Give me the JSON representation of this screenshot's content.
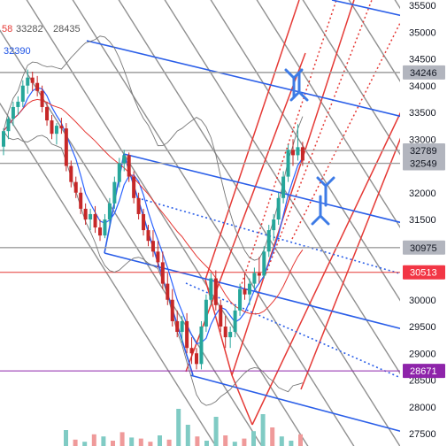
{
  "chart_data": {
    "type": "candlestick",
    "legend_values": [
      {
        "text": "58",
        "color": "#e53935"
      },
      {
        "text": "33282",
        "color": "#555555"
      },
      {
        "text": "28435",
        "color": "#555555"
      },
      {
        "text": "32390",
        "color": "#1e53e5"
      }
    ],
    "ylim": [
      27250,
      35650
    ],
    "y_ticks": [
      27500,
      28000,
      28500,
      29000,
      29500,
      30000,
      30500,
      31000,
      31500,
      32000,
      32500,
      33000,
      33500,
      34000,
      34500,
      35000,
      35500
    ],
    "y_tick_labels": [
      "27500",
      "28000",
      "28500",
      "29000",
      "29500",
      "30000",
      "30500",
      "31000",
      "31500",
      "32000",
      "32500",
      "33000",
      "33500",
      "34000",
      "34500",
      "35000",
      "35500"
    ],
    "price_labels": [
      {
        "value": 34246,
        "text": "34246",
        "style": "gray"
      },
      {
        "value": 32789,
        "text": "32789",
        "style": "gray"
      },
      {
        "value": 32549,
        "text": "32549",
        "style": "gray"
      },
      {
        "value": 30975,
        "text": "30975",
        "style": "gray"
      },
      {
        "value": 30513,
        "text": "30513",
        "style": "red"
      },
      {
        "value": 28671,
        "text": "28671",
        "style": "purple"
      }
    ],
    "colors": {
      "up": "#26a69a",
      "down": "#c62828",
      "red_lines": "#e53935",
      "blue_lines": "#2a5ee8",
      "gray_lines": "#6b6b6b",
      "arrows": "#3d7be6",
      "ma_blue": "#2962ff",
      "ma_red": "#e53935",
      "band": "#777777",
      "tag_gray": "#b2b5be",
      "tag_red": "#f23645",
      "tag_purple": "#8e24aa"
    },
    "candles": [
      [
        32860,
        33200,
        32700,
        33150
      ],
      [
        33150,
        33420,
        33000,
        33380
      ],
      [
        33380,
        33700,
        33250,
        33600
      ],
      [
        33600,
        33800,
        33450,
        33700
      ],
      [
        33700,
        34100,
        33600,
        34000
      ],
      [
        34000,
        34300,
        33850,
        34150
      ],
      [
        34150,
        34260,
        33900,
        34050
      ],
      [
        34050,
        34180,
        33800,
        33900
      ],
      [
        33900,
        34000,
        33500,
        33600
      ],
      [
        33600,
        33700,
        33250,
        33350
      ],
      [
        33350,
        33450,
        33000,
        33100
      ],
      [
        33100,
        33300,
        32900,
        33250
      ],
      [
        33250,
        33400,
        33100,
        33200
      ],
      [
        33200,
        33300,
        32400,
        32500
      ],
      [
        32500,
        32600,
        32100,
        32200
      ],
      [
        32200,
        32300,
        31900,
        32000
      ],
      [
        32000,
        32100,
        31600,
        31700
      ],
      [
        31700,
        31800,
        31400,
        31500
      ],
      [
        31500,
        31700,
        31300,
        31600
      ],
      [
        31600,
        31750,
        31250,
        31350
      ],
      [
        31350,
        31500,
        31100,
        31200
      ],
      [
        31200,
        31600,
        31150,
        31500
      ],
      [
        31500,
        31900,
        31400,
        31800
      ],
      [
        31800,
        32300,
        31700,
        32200
      ],
      [
        32200,
        32650,
        32100,
        32550
      ],
      [
        32550,
        32800,
        32400,
        32700
      ],
      [
        32700,
        32750,
        32200,
        32300
      ],
      [
        32300,
        32400,
        31800,
        31900
      ],
      [
        31900,
        32000,
        31500,
        31600
      ],
      [
        31600,
        31700,
        31200,
        31300
      ],
      [
        31300,
        31400,
        31000,
        31100
      ],
      [
        31100,
        31300,
        30800,
        30900
      ],
      [
        30900,
        31100,
        30600,
        30700
      ],
      [
        30700,
        30900,
        30200,
        30300
      ],
      [
        30300,
        30500,
        29900,
        30000
      ],
      [
        30000,
        30200,
        29500,
        29600
      ],
      [
        29600,
        29800,
        29300,
        29400
      ],
      [
        29400,
        29700,
        29200,
        29600
      ],
      [
        29600,
        29750,
        29000,
        29100
      ],
      [
        29100,
        29300,
        28800,
        29000
      ],
      [
        29000,
        29100,
        28700,
        28800
      ],
      [
        28800,
        29600,
        28700,
        29500
      ],
      [
        29500,
        30100,
        29400,
        30000
      ],
      [
        30000,
        30500,
        29900,
        30400
      ],
      [
        30400,
        30550,
        29800,
        29900
      ],
      [
        29900,
        30000,
        29400,
        29500
      ],
      [
        29500,
        29700,
        29100,
        29300
      ],
      [
        29300,
        29500,
        29100,
        29400
      ],
      [
        29400,
        29900,
        29300,
        29800
      ],
      [
        29800,
        30300,
        29700,
        30200
      ],
      [
        30200,
        30500,
        30000,
        30100
      ],
      [
        30100,
        30400,
        29900,
        30300
      ],
      [
        30300,
        30600,
        30200,
        30500
      ],
      [
        30500,
        30800,
        30300,
        30450
      ],
      [
        30450,
        31000,
        30400,
        30900
      ],
      [
        30900,
        31400,
        30800,
        31300
      ],
      [
        31300,
        31600,
        31100,
        31500
      ],
      [
        31500,
        32000,
        31400,
        31900
      ],
      [
        31900,
        32400,
        31800,
        32300
      ],
      [
        32300,
        32900,
        32200,
        32800
      ],
      [
        32800,
        33000,
        32500,
        32700
      ],
      [
        32700,
        33280,
        32600,
        32850
      ],
      [
        32850,
        32950,
        32500,
        32600
      ]
    ],
    "volumes": [
      [
        30,
        "up"
      ],
      [
        12,
        "down"
      ],
      [
        8,
        "up"
      ],
      [
        22,
        "down"
      ],
      [
        18,
        "up"
      ],
      [
        10,
        "down"
      ],
      [
        26,
        "down"
      ],
      [
        16,
        "up"
      ],
      [
        14,
        "down"
      ],
      [
        8,
        "down"
      ],
      [
        20,
        "up"
      ],
      [
        12,
        "down"
      ],
      [
        70,
        "up"
      ],
      [
        40,
        "up"
      ],
      [
        18,
        "down"
      ],
      [
        10,
        "up"
      ],
      [
        55,
        "up"
      ],
      [
        20,
        "down"
      ],
      [
        8,
        "up"
      ],
      [
        14,
        "down"
      ],
      [
        28,
        "up"
      ],
      [
        60,
        "up"
      ],
      [
        35,
        "down"
      ],
      [
        18,
        "up"
      ],
      [
        10,
        "up"
      ],
      [
        22,
        "down"
      ]
    ]
  }
}
